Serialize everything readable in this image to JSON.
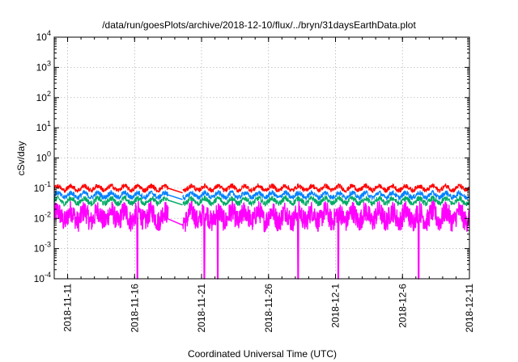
{
  "chart_data": {
    "type": "line",
    "title": "/data/run/goesPlots/archive/2018-12-10/flux/../bryn/31daysEarthData.plot",
    "xlabel": "Coordinated Universal Time (UTC)",
    "ylabel": "cSv/day",
    "x_ticks": [
      "2018-11-11",
      "2018-11-16",
      "2018-11-21",
      "2018-11-26",
      "2018-12-1",
      "2018-12-6",
      "2018-12-11"
    ],
    "xlim": [
      "2018-11-10",
      "2018-12-11"
    ],
    "y_scale": "log",
    "ylim": [
      0.0001,
      10000
    ],
    "y_ticks": [
      {
        "base": "10",
        "exp": "-4"
      },
      {
        "base": "10",
        "exp": "-3"
      },
      {
        "base": "10",
        "exp": "-2"
      },
      {
        "base": "10",
        "exp": "-1"
      },
      {
        "base": "10",
        "exp": "0"
      },
      {
        "base": "10",
        "exp": "1"
      },
      {
        "base": "10",
        "exp": "2"
      },
      {
        "base": "10",
        "exp": "3"
      },
      {
        "base": "10",
        "exp": "4"
      }
    ],
    "grid": true,
    "data_gap": [
      "2018-11-18T12:00",
      "2018-11-19T14:00"
    ],
    "series": [
      {
        "color": "#ff0000",
        "typical": 0.1,
        "range": [
          0.07,
          0.15
        ]
      },
      {
        "color": "#0080ff",
        "typical": 0.06,
        "range": [
          0.04,
          0.09
        ]
      },
      {
        "color": "#00aa66",
        "typical": 0.04,
        "range": [
          0.025,
          0.06
        ]
      },
      {
        "color": "#ff00ff",
        "typical": 0.012,
        "range": [
          0.005,
          0.03
        ],
        "dropouts_to_floor": [
          "2018-11-16",
          "2018-11-21",
          "2018-11-22",
          "2018-11-28",
          "2018-12-1",
          "2018-12-7"
        ]
      }
    ]
  }
}
